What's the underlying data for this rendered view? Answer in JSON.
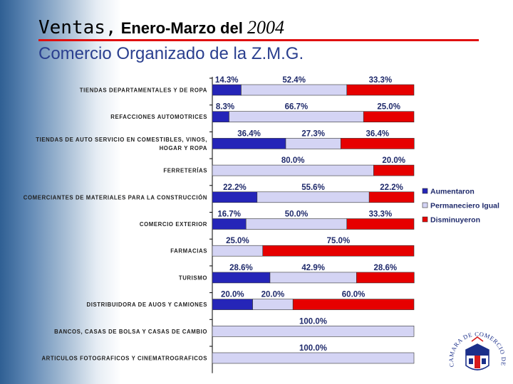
{
  "title": {
    "word": "Ventas,",
    "range": " Enero-Marzo del ",
    "year": "2004"
  },
  "subtitle": "Comercio Organizado de la Z.M.G.",
  "colors": {
    "aumentaron": "#2525b8",
    "igual": "#d4d4f4",
    "disminuyeron": "#e60000",
    "title_rule": "#e01010",
    "subtitle": "#2a3f8f"
  },
  "seal_text": "CAMARA DE COMERCIO DE GUADALAJARA",
  "chart_data": {
    "type": "bar",
    "orientation": "horizontal",
    "stacked": true,
    "percent_scale": [
      0,
      100
    ],
    "categories": [
      [
        "TIENDAS DEPARTAMENTALES Y DE ROPA"
      ],
      [
        "REFACCIONES AUTOMOTRICES"
      ],
      [
        "TIENDAS DE AUTO SERVICIO EN COMESTIBLES, VINOS,",
        "HOGAR Y ROPA"
      ],
      [
        "FERRETERÍAS"
      ],
      [
        "COMERCIANTES DE MATERIALES PARA LA CONSTRUCCIÓN"
      ],
      [
        "COMERCIO EXTERIOR"
      ],
      [
        "FARMACIAS"
      ],
      [
        "TURISMO"
      ],
      [
        "DISTRIBUIDORA DE AUOS Y CAMIONES"
      ],
      [
        "BANCOS, CASAS DE BOLSA Y CASAS DE CAMBIO"
      ],
      [
        "ARTICULOS FOTOGRAFICOS Y CINEMATROGRAFICOS"
      ]
    ],
    "series": [
      {
        "name": "Aumentaron",
        "values": [
          14.3,
          8.3,
          36.4,
          0,
          22.2,
          16.7,
          0,
          28.6,
          20.0,
          0,
          0
        ]
      },
      {
        "name": "Permaneciero Igual",
        "values": [
          52.4,
          66.7,
          27.3,
          80.0,
          55.6,
          50.0,
          25.0,
          42.9,
          20.0,
          100.0,
          100.0
        ]
      },
      {
        "name": "Disminuyeron",
        "values": [
          33.3,
          25.0,
          36.4,
          20.0,
          22.2,
          33.3,
          75.0,
          28.6,
          60.0,
          0,
          0
        ]
      }
    ],
    "data_labels": [
      [
        "14.3%",
        "52.4%",
        "33.3%"
      ],
      [
        "8.3%",
        "66.7%",
        "25.0%"
      ],
      [
        "36.4%",
        "27.3%",
        "36.4%"
      ],
      [
        "",
        "80.0%",
        "20.0%"
      ],
      [
        "22.2%",
        "55.6%",
        "22.2%"
      ],
      [
        "16.7%",
        "50.0%",
        "33.3%"
      ],
      [
        "",
        "25.0%",
        "75.0%"
      ],
      [
        "28.6%",
        "42.9%",
        "28.6%"
      ],
      [
        "20.0%",
        "20.0%",
        "60.0%"
      ],
      [
        "",
        "100.0%",
        ""
      ],
      [
        "",
        "100.0%",
        ""
      ]
    ],
    "legend": {
      "position": "right",
      "entries": [
        "Aumentaron",
        "Permaneciero Igual",
        "Disminuyeron"
      ]
    }
  }
}
